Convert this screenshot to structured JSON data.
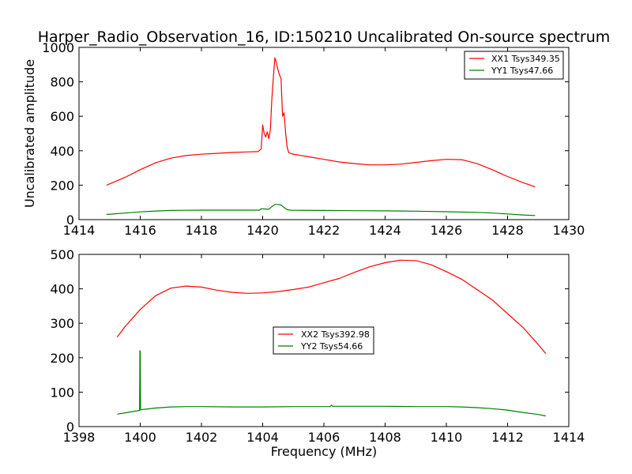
{
  "title": "Harper_Radio_Observation_16, ID:150210 Uncalibrated On-source spectrum",
  "chart_data": [
    {
      "type": "line",
      "panel": "top",
      "xlabel": "",
      "ylabel": "Uncalibrated amplitude",
      "xlim": [
        1414,
        1430
      ],
      "ylim": [
        0,
        1000
      ],
      "xticks": [
        1414,
        1416,
        1418,
        1420,
        1422,
        1424,
        1426,
        1428,
        1430
      ],
      "yticks": [
        0,
        200,
        400,
        600,
        800,
        1000
      ],
      "legend_position": "top-right",
      "series": [
        {
          "name": "XX1 Tsys349.35",
          "color": "#ff0000",
          "x": [
            1414.9,
            1415.5,
            1416,
            1416.5,
            1417,
            1417.5,
            1418,
            1418.5,
            1419,
            1419.5,
            1419.85,
            1419.95,
            1420.0,
            1420.05,
            1420.1,
            1420.15,
            1420.2,
            1420.25,
            1420.3,
            1420.35,
            1420.4,
            1420.45,
            1420.5,
            1420.55,
            1420.6,
            1420.65,
            1420.7,
            1420.75,
            1420.8,
            1420.85,
            1420.9,
            1420.95,
            1421.0,
            1421.5,
            1422,
            1422.5,
            1423,
            1423.5,
            1424,
            1424.5,
            1425,
            1425.5,
            1426,
            1426.5,
            1427,
            1427.5,
            1428,
            1428.5,
            1428.9
          ],
          "y": [
            200,
            245,
            290,
            330,
            357,
            372,
            380,
            385,
            390,
            393,
            395,
            410,
            550,
            500,
            480,
            510,
            470,
            520,
            700,
            830,
            940,
            910,
            870,
            840,
            820,
            600,
            620,
            500,
            420,
            390,
            385,
            383,
            380,
            365,
            350,
            335,
            325,
            318,
            318,
            322,
            332,
            342,
            350,
            348,
            325,
            290,
            250,
            215,
            190
          ]
        },
        {
          "name": "YY1 Tsys47.66",
          "color": "#008000",
          "x": [
            1414.9,
            1415.5,
            1416,
            1416.5,
            1417,
            1417.5,
            1418,
            1418.5,
            1419,
            1419.5,
            1419.9,
            1419.95,
            1420.05,
            1420.2,
            1420.3,
            1420.4,
            1420.5,
            1420.6,
            1420.7,
            1420.8,
            1420.9,
            1421.0,
            1422,
            1423,
            1424,
            1425,
            1426,
            1427,
            1427.5,
            1428,
            1428.5,
            1428.9
          ],
          "y": [
            30,
            38,
            45,
            50,
            53,
            54,
            55,
            55,
            55,
            55,
            55,
            63,
            62,
            60,
            75,
            88,
            88,
            85,
            70,
            58,
            55,
            54,
            53,
            52,
            51,
            49,
            46,
            42,
            38,
            33,
            27,
            24
          ]
        }
      ]
    },
    {
      "type": "line",
      "panel": "bottom",
      "xlabel": "Frequency (MHz)",
      "ylabel": "",
      "xlim": [
        1398,
        1414
      ],
      "ylim": [
        0,
        500
      ],
      "xticks": [
        1398,
        1400,
        1402,
        1404,
        1406,
        1408,
        1410,
        1412,
        1414
      ],
      "yticks": [
        0,
        100,
        200,
        300,
        400,
        500
      ],
      "legend_position": "center",
      "series": [
        {
          "name": "XX2 Tsys392.98",
          "color": "#ff0000",
          "x": [
            1399.25,
            1399.5,
            1400,
            1400.5,
            1401,
            1401.5,
            1402,
            1402.5,
            1403,
            1403.5,
            1404,
            1404.5,
            1405,
            1405.5,
            1406,
            1406.5,
            1407,
            1407.5,
            1408,
            1408.5,
            1409,
            1409.5,
            1410,
            1410.5,
            1411,
            1411.5,
            1412,
            1412.5,
            1413,
            1413.25
          ],
          "y": [
            260,
            290,
            340,
            380,
            402,
            408,
            405,
            396,
            390,
            387,
            388,
            392,
            398,
            405,
            418,
            430,
            448,
            464,
            476,
            483,
            482,
            470,
            450,
            428,
            398,
            368,
            328,
            288,
            238,
            212
          ]
        },
        {
          "name": "YY2 Tsys54.66",
          "color": "#008000",
          "x": [
            1399.25,
            1399.5,
            1399.98,
            1399.99,
            1400.0,
            1400.01,
            1400.02,
            1400.5,
            1401,
            1401.5,
            1402,
            1403,
            1404,
            1405,
            1406,
            1406.2,
            1406.25,
            1406.3,
            1407,
            1408,
            1409,
            1410,
            1410.5,
            1411,
            1411.5,
            1412,
            1412.5,
            1413,
            1413.25
          ],
          "y": [
            36,
            40,
            47,
            220,
            220,
            49,
            49,
            54,
            57,
            58,
            58,
            57,
            57,
            58,
            58,
            58,
            62,
            59,
            59,
            59,
            58,
            58,
            57,
            55,
            52,
            48,
            41,
            35,
            31
          ]
        }
      ]
    }
  ]
}
